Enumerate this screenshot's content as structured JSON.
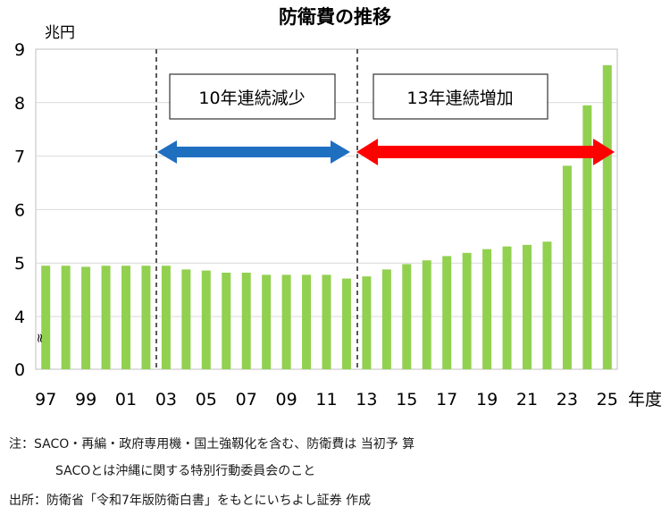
{
  "chart_data": {
    "type": "bar",
    "title": "防衛費の推移",
    "ylabel": "兆円",
    "x_unit": "年度",
    "ylim": [
      0,
      9
    ],
    "yticks": [
      0,
      4,
      5,
      6,
      7,
      8,
      9
    ],
    "axis_break_mark": "≈",
    "categories": [
      "97",
      "98",
      "99",
      "00",
      "01",
      "02",
      "03",
      "04",
      "05",
      "06",
      "07",
      "08",
      "09",
      "10",
      "11",
      "12",
      "13",
      "14",
      "15",
      "16",
      "17",
      "18",
      "19",
      "20",
      "21",
      "22",
      "23",
      "24",
      "25"
    ],
    "xtick_labels": [
      "97",
      "99",
      "01",
      "03",
      "05",
      "07",
      "09",
      "11",
      "13",
      "15",
      "17",
      "19",
      "21",
      "23",
      "25"
    ],
    "values": [
      4.95,
      4.95,
      4.93,
      4.95,
      4.95,
      4.95,
      4.95,
      4.88,
      4.86,
      4.82,
      4.82,
      4.78,
      4.78,
      4.78,
      4.78,
      4.71,
      4.75,
      4.88,
      4.98,
      5.05,
      5.13,
      5.19,
      5.26,
      5.31,
      5.34,
      5.4,
      6.82,
      7.95,
      8.7
    ],
    "bar_color": "#92d050",
    "annotations": [
      {
        "text": "10年連続減少",
        "from": "03",
        "to": "12",
        "arrow_color": "#1f6fc0"
      },
      {
        "text": "13年連続増加",
        "from": "13",
        "to": "25",
        "arrow_color": "#ff0000"
      }
    ]
  },
  "notes": {
    "line1": "注：SACO・再編・政府専用機・国土強靱化を含む、防衛費は 当初予 算",
    "line2": "SACOとは沖縄に関する特別行動委員会のこと",
    "source": "出所：防衛省「令和7年版防衛白書」をもとにいちよし証券 作成"
  }
}
